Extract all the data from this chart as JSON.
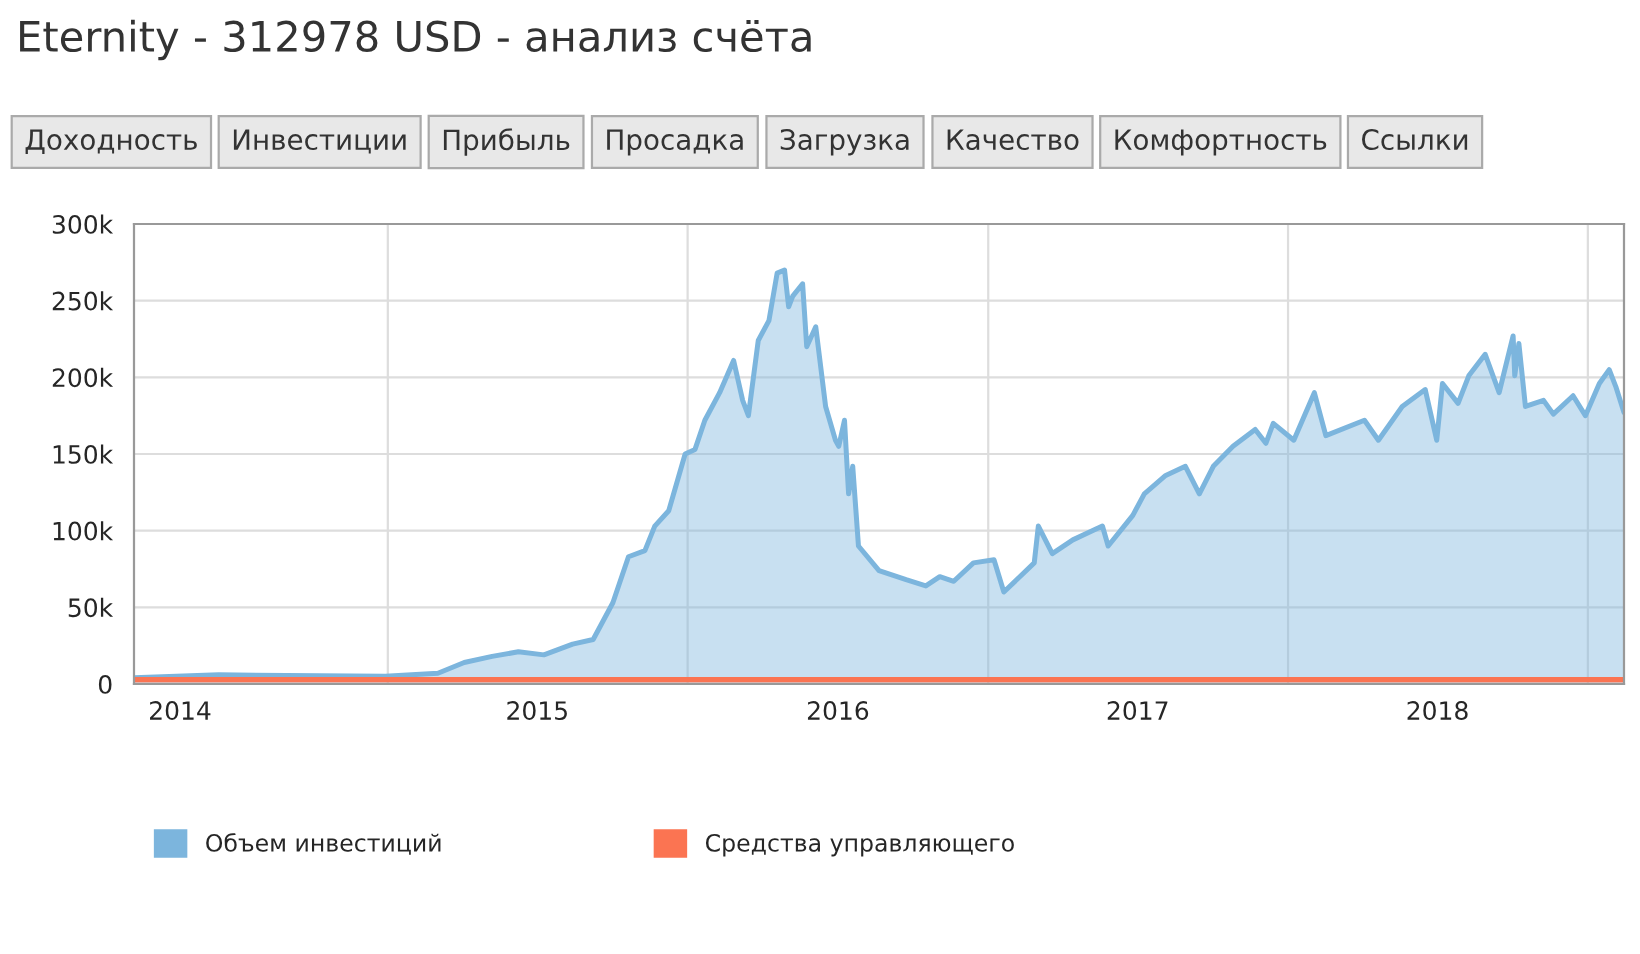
{
  "chart_data": {
    "type": "area",
    "title": "Eternity - 312978 USD - анализ счёта",
    "annotations": [
      "Доходность",
      "Инвестиции",
      "Прибыль",
      "Просадка",
      "Загрузка",
      "Качество",
      "Комфортность",
      "Ссылки"
    ],
    "xlim": [
      "2014-02-26",
      "2019-02-14"
    ],
    "xticks": [
      {
        "value": "2014-04-23",
        "label": "2014"
      },
      {
        "value": "2015-01-01",
        "label": null
      },
      {
        "value": "2015-07-02",
        "label": "2015"
      },
      {
        "value": "2016-01-01",
        "label": null
      },
      {
        "value": "2016-07-02",
        "label": "2016"
      },
      {
        "value": "2017-01-01",
        "label": null
      },
      {
        "value": "2017-07-02",
        "label": "2017"
      },
      {
        "value": "2018-01-01",
        "label": null
      },
      {
        "value": "2018-07-02",
        "label": "2018"
      },
      {
        "value": "2019-01-01",
        "label": null
      }
    ],
    "ylim": [
      0,
      300000
    ],
    "yticks": [
      0,
      {
        "value": 50000,
        "label": "50k"
      },
      {
        "value": 100000,
        "label": "100k"
      },
      {
        "value": 150000,
        "label": "150k"
      },
      {
        "value": 200000,
        "label": "200k"
      },
      {
        "value": 250000,
        "label": "250k"
      },
      {
        "value": 300000,
        "label": "300k"
      }
    ],
    "grid": true,
    "legend": "bottom left",
    "series": [
      {
        "name": "Объем инвестиций",
        "color": "#7cb5dd",
        "x": [
          "2014-02-26",
          "2014-06-09",
          "2014-12-29",
          "2015-03-03",
          "2015-04-04",
          "2015-05-08",
          "2015-06-09",
          "2015-07-10",
          "2015-08-14",
          "2015-09-08",
          "2015-10-02",
          "2015-10-21",
          "2015-11-10",
          "2015-11-22",
          "2015-12-09",
          "2015-12-29",
          "2016-01-10",
          "2016-01-22",
          "2016-02-09",
          "2016-02-26",
          "2016-03-08",
          "2016-03-15",
          "2016-03-27",
          "2016-04-09",
          "2016-04-19",
          "2016-04-28",
          "2016-05-03",
          "2016-05-08",
          "2016-05-20",
          "2016-05-25",
          "2016-06-05",
          "2016-06-17",
          "2016-06-29",
          "2016-07-03",
          "2016-07-10",
          "2016-07-15",
          "2016-07-20",
          "2016-07-27",
          "2016-08-21",
          "2016-09-23",
          "2016-10-17",
          "2016-11-03",
          "2016-11-20",
          "2016-12-14",
          "2017-01-08",
          "2017-01-20",
          "2017-02-26",
          "2017-03-03",
          "2017-03-20",
          "2017-04-14",
          "2017-05-20",
          "2017-05-27",
          "2017-06-26",
          "2017-07-10",
          "2017-08-05",
          "2017-08-29",
          "2017-09-15",
          "2017-10-02",
          "2017-10-26",
          "2017-11-22",
          "2017-12-05",
          "2017-12-14",
          "2018-01-08",
          "2018-02-02",
          "2018-02-16",
          "2018-04-04",
          "2018-04-21",
          "2018-05-20",
          "2018-06-17",
          "2018-07-01",
          "2018-07-08",
          "2018-07-27",
          "2018-08-09",
          "2018-08-29",
          "2018-09-15",
          "2018-10-02",
          "2018-10-04",
          "2018-10-09",
          "2018-10-17",
          "2018-11-08",
          "2018-11-20",
          "2018-12-14",
          "2018-12-29",
          "2019-01-15",
          "2019-01-27",
          "2019-02-04",
          "2019-02-14"
        ],
        "values": [
          4000,
          6000,
          5000,
          7000,
          14000,
          18000,
          21000,
          19000,
          26000,
          29000,
          53000,
          83000,
          87000,
          103000,
          113000,
          150000,
          153000,
          172000,
          190000,
          211000,
          185000,
          175000,
          224000,
          237000,
          268000,
          270000,
          246000,
          253000,
          261000,
          220000,
          233000,
          181000,
          159000,
          155000,
          172000,
          124000,
          142000,
          90000,
          74000,
          68000,
          64000,
          70000,
          67000,
          79000,
          81000,
          60000,
          79000,
          103000,
          85000,
          94000,
          103000,
          90000,
          110000,
          124000,
          136000,
          142000,
          124000,
          142000,
          155000,
          166000,
          157000,
          170000,
          159000,
          190000,
          162000,
          172000,
          159000,
          181000,
          192000,
          159000,
          196000,
          183000,
          201000,
          215000,
          190000,
          227000,
          201000,
          222000,
          181000,
          185000,
          176000,
          188000,
          175000,
          196000,
          205000,
          194000,
          177000
        ]
      },
      {
        "name": "Средства управляющего",
        "color": "#fb7452",
        "x": [
          "2014-02-26",
          "2015-06-01",
          "2016-06-01",
          "2017-06-01",
          "2018-06-01",
          "2019-02-14"
        ],
        "values": [
          3000,
          3000,
          3000,
          3000,
          3000,
          3000
        ]
      }
    ]
  }
}
